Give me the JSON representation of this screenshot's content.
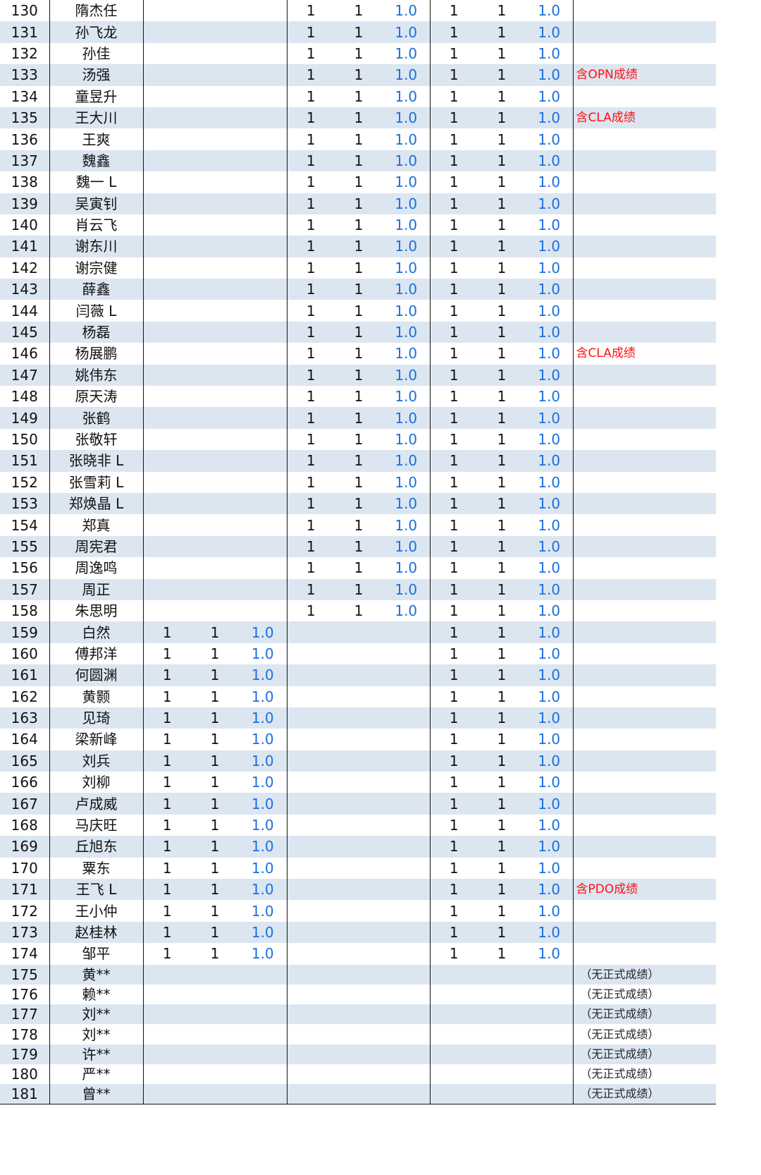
{
  "rows": [
    {
      "no": "130",
      "name": "隋杰任",
      "a1": "",
      "a2": "",
      "ar": "",
      "b1": "1",
      "b2": "1",
      "br": "1.0",
      "c1": "1",
      "c2": "1",
      "cr": "1.0",
      "note": ""
    },
    {
      "no": "131",
      "name": "孙飞龙",
      "a1": "",
      "a2": "",
      "ar": "",
      "b1": "1",
      "b2": "1",
      "br": "1.0",
      "c1": "1",
      "c2": "1",
      "cr": "1.0",
      "note": ""
    },
    {
      "no": "132",
      "name": "孙佳",
      "a1": "",
      "a2": "",
      "ar": "",
      "b1": "1",
      "b2": "1",
      "br": "1.0",
      "c1": "1",
      "c2": "1",
      "cr": "1.0",
      "note": ""
    },
    {
      "no": "133",
      "name": "汤强",
      "a1": "",
      "a2": "",
      "ar": "",
      "b1": "1",
      "b2": "1",
      "br": "1.0",
      "c1": "1",
      "c2": "1",
      "cr": "1.0",
      "note": "含OPN成绩"
    },
    {
      "no": "134",
      "name": "童昱升",
      "a1": "",
      "a2": "",
      "ar": "",
      "b1": "1",
      "b2": "1",
      "br": "1.0",
      "c1": "1",
      "c2": "1",
      "cr": "1.0",
      "note": ""
    },
    {
      "no": "135",
      "name": "王大川",
      "a1": "",
      "a2": "",
      "ar": "",
      "b1": "1",
      "b2": "1",
      "br": "1.0",
      "c1": "1",
      "c2": "1",
      "cr": "1.0",
      "note": "含CLA成绩"
    },
    {
      "no": "136",
      "name": "王爽",
      "a1": "",
      "a2": "",
      "ar": "",
      "b1": "1",
      "b2": "1",
      "br": "1.0",
      "c1": "1",
      "c2": "1",
      "cr": "1.0",
      "note": ""
    },
    {
      "no": "137",
      "name": "魏鑫",
      "a1": "",
      "a2": "",
      "ar": "",
      "b1": "1",
      "b2": "1",
      "br": "1.0",
      "c1": "1",
      "c2": "1",
      "cr": "1.0",
      "note": ""
    },
    {
      "no": "138",
      "name": "魏一 L",
      "a1": "",
      "a2": "",
      "ar": "",
      "b1": "1",
      "b2": "1",
      "br": "1.0",
      "c1": "1",
      "c2": "1",
      "cr": "1.0",
      "note": ""
    },
    {
      "no": "139",
      "name": "吴寅钊",
      "a1": "",
      "a2": "",
      "ar": "",
      "b1": "1",
      "b2": "1",
      "br": "1.0",
      "c1": "1",
      "c2": "1",
      "cr": "1.0",
      "note": ""
    },
    {
      "no": "140",
      "name": "肖云飞",
      "a1": "",
      "a2": "",
      "ar": "",
      "b1": "1",
      "b2": "1",
      "br": "1.0",
      "c1": "1",
      "c2": "1",
      "cr": "1.0",
      "note": ""
    },
    {
      "no": "141",
      "name": "谢东川",
      "a1": "",
      "a2": "",
      "ar": "",
      "b1": "1",
      "b2": "1",
      "br": "1.0",
      "c1": "1",
      "c2": "1",
      "cr": "1.0",
      "note": ""
    },
    {
      "no": "142",
      "name": "谢宗健",
      "a1": "",
      "a2": "",
      "ar": "",
      "b1": "1",
      "b2": "1",
      "br": "1.0",
      "c1": "1",
      "c2": "1",
      "cr": "1.0",
      "note": ""
    },
    {
      "no": "143",
      "name": "薛鑫",
      "a1": "",
      "a2": "",
      "ar": "",
      "b1": "1",
      "b2": "1",
      "br": "1.0",
      "c1": "1",
      "c2": "1",
      "cr": "1.0",
      "note": ""
    },
    {
      "no": "144",
      "name": "闫薇 L",
      "a1": "",
      "a2": "",
      "ar": "",
      "b1": "1",
      "b2": "1",
      "br": "1.0",
      "c1": "1",
      "c2": "1",
      "cr": "1.0",
      "note": ""
    },
    {
      "no": "145",
      "name": "杨磊",
      "a1": "",
      "a2": "",
      "ar": "",
      "b1": "1",
      "b2": "1",
      "br": "1.0",
      "c1": "1",
      "c2": "1",
      "cr": "1.0",
      "note": ""
    },
    {
      "no": "146",
      "name": "杨展鹏",
      "a1": "",
      "a2": "",
      "ar": "",
      "b1": "1",
      "b2": "1",
      "br": "1.0",
      "c1": "1",
      "c2": "1",
      "cr": "1.0",
      "note": "含CLA成绩"
    },
    {
      "no": "147",
      "name": "姚伟东",
      "a1": "",
      "a2": "",
      "ar": "",
      "b1": "1",
      "b2": "1",
      "br": "1.0",
      "c1": "1",
      "c2": "1",
      "cr": "1.0",
      "note": ""
    },
    {
      "no": "148",
      "name": "原天涛",
      "a1": "",
      "a2": "",
      "ar": "",
      "b1": "1",
      "b2": "1",
      "br": "1.0",
      "c1": "1",
      "c2": "1",
      "cr": "1.0",
      "note": ""
    },
    {
      "no": "149",
      "name": "张鹤",
      "a1": "",
      "a2": "",
      "ar": "",
      "b1": "1",
      "b2": "1",
      "br": "1.0",
      "c1": "1",
      "c2": "1",
      "cr": "1.0",
      "note": ""
    },
    {
      "no": "150",
      "name": "张敬轩",
      "a1": "",
      "a2": "",
      "ar": "",
      "b1": "1",
      "b2": "1",
      "br": "1.0",
      "c1": "1",
      "c2": "1",
      "cr": "1.0",
      "note": ""
    },
    {
      "no": "151",
      "name": "张晓非 L",
      "a1": "",
      "a2": "",
      "ar": "",
      "b1": "1",
      "b2": "1",
      "br": "1.0",
      "c1": "1",
      "c2": "1",
      "cr": "1.0",
      "note": ""
    },
    {
      "no": "152",
      "name": "张雪莉 L",
      "a1": "",
      "a2": "",
      "ar": "",
      "b1": "1",
      "b2": "1",
      "br": "1.0",
      "c1": "1",
      "c2": "1",
      "cr": "1.0",
      "note": ""
    },
    {
      "no": "153",
      "name": "郑焕晶 L",
      "a1": "",
      "a2": "",
      "ar": "",
      "b1": "1",
      "b2": "1",
      "br": "1.0",
      "c1": "1",
      "c2": "1",
      "cr": "1.0",
      "note": ""
    },
    {
      "no": "154",
      "name": "郑真",
      "a1": "",
      "a2": "",
      "ar": "",
      "b1": "1",
      "b2": "1",
      "br": "1.0",
      "c1": "1",
      "c2": "1",
      "cr": "1.0",
      "note": ""
    },
    {
      "no": "155",
      "name": "周宪君",
      "a1": "",
      "a2": "",
      "ar": "",
      "b1": "1",
      "b2": "1",
      "br": "1.0",
      "c1": "1",
      "c2": "1",
      "cr": "1.0",
      "note": ""
    },
    {
      "no": "156",
      "name": "周逸鸣",
      "a1": "",
      "a2": "",
      "ar": "",
      "b1": "1",
      "b2": "1",
      "br": "1.0",
      "c1": "1",
      "c2": "1",
      "cr": "1.0",
      "note": ""
    },
    {
      "no": "157",
      "name": "周正",
      "a1": "",
      "a2": "",
      "ar": "",
      "b1": "1",
      "b2": "1",
      "br": "1.0",
      "c1": "1",
      "c2": "1",
      "cr": "1.0",
      "note": ""
    },
    {
      "no": "158",
      "name": "朱思明",
      "a1": "",
      "a2": "",
      "ar": "",
      "b1": "1",
      "b2": "1",
      "br": "1.0",
      "c1": "1",
      "c2": "1",
      "cr": "1.0",
      "note": ""
    },
    {
      "no": "159",
      "name": "白然",
      "a1": "1",
      "a2": "1",
      "ar": "1.0",
      "b1": "",
      "b2": "",
      "br": "",
      "c1": "1",
      "c2": "1",
      "cr": "1.0",
      "note": ""
    },
    {
      "no": "160",
      "name": "傅邦洋",
      "a1": "1",
      "a2": "1",
      "ar": "1.0",
      "b1": "",
      "b2": "",
      "br": "",
      "c1": "1",
      "c2": "1",
      "cr": "1.0",
      "note": ""
    },
    {
      "no": "161",
      "name": "何圆渊",
      "a1": "1",
      "a2": "1",
      "ar": "1.0",
      "b1": "",
      "b2": "",
      "br": "",
      "c1": "1",
      "c2": "1",
      "cr": "1.0",
      "note": ""
    },
    {
      "no": "162",
      "name": "黄颢",
      "a1": "1",
      "a2": "1",
      "ar": "1.0",
      "b1": "",
      "b2": "",
      "br": "",
      "c1": "1",
      "c2": "1",
      "cr": "1.0",
      "note": ""
    },
    {
      "no": "163",
      "name": "见琦",
      "a1": "1",
      "a2": "1",
      "ar": "1.0",
      "b1": "",
      "b2": "",
      "br": "",
      "c1": "1",
      "c2": "1",
      "cr": "1.0",
      "note": ""
    },
    {
      "no": "164",
      "name": "梁新峰",
      "a1": "1",
      "a2": "1",
      "ar": "1.0",
      "b1": "",
      "b2": "",
      "br": "",
      "c1": "1",
      "c2": "1",
      "cr": "1.0",
      "note": ""
    },
    {
      "no": "165",
      "name": "刘兵",
      "a1": "1",
      "a2": "1",
      "ar": "1.0",
      "b1": "",
      "b2": "",
      "br": "",
      "c1": "1",
      "c2": "1",
      "cr": "1.0",
      "note": ""
    },
    {
      "no": "166",
      "name": "刘柳",
      "a1": "1",
      "a2": "1",
      "ar": "1.0",
      "b1": "",
      "b2": "",
      "br": "",
      "c1": "1",
      "c2": "1",
      "cr": "1.0",
      "note": ""
    },
    {
      "no": "167",
      "name": "卢成威",
      "a1": "1",
      "a2": "1",
      "ar": "1.0",
      "b1": "",
      "b2": "",
      "br": "",
      "c1": "1",
      "c2": "1",
      "cr": "1.0",
      "note": ""
    },
    {
      "no": "168",
      "name": "马庆旺",
      "a1": "1",
      "a2": "1",
      "ar": "1.0",
      "b1": "",
      "b2": "",
      "br": "",
      "c1": "1",
      "c2": "1",
      "cr": "1.0",
      "note": ""
    },
    {
      "no": "169",
      "name": "丘旭东",
      "a1": "1",
      "a2": "1",
      "ar": "1.0",
      "b1": "",
      "b2": "",
      "br": "",
      "c1": "1",
      "c2": "1",
      "cr": "1.0",
      "note": ""
    },
    {
      "no": "170",
      "name": "粟东",
      "a1": "1",
      "a2": "1",
      "ar": "1.0",
      "b1": "",
      "b2": "",
      "br": "",
      "c1": "1",
      "c2": "1",
      "cr": "1.0",
      "note": ""
    },
    {
      "no": "171",
      "name": "王飞 L",
      "a1": "1",
      "a2": "1",
      "ar": "1.0",
      "b1": "",
      "b2": "",
      "br": "",
      "c1": "1",
      "c2": "1",
      "cr": "1.0",
      "note": "含PDO成绩"
    },
    {
      "no": "172",
      "name": "王小仲",
      "a1": "1",
      "a2": "1",
      "ar": "1.0",
      "b1": "",
      "b2": "",
      "br": "",
      "c1": "1",
      "c2": "1",
      "cr": "1.0",
      "note": ""
    },
    {
      "no": "173",
      "name": "赵桂林",
      "a1": "1",
      "a2": "1",
      "ar": "1.0",
      "b1": "",
      "b2": "",
      "br": "",
      "c1": "1",
      "c2": "1",
      "cr": "1.0",
      "note": ""
    },
    {
      "no": "174",
      "name": "邹平",
      "a1": "1",
      "a2": "1",
      "ar": "1.0",
      "b1": "",
      "b2": "",
      "br": "",
      "c1": "1",
      "c2": "1",
      "cr": "1.0",
      "note": ""
    },
    {
      "no": "175",
      "name": "黄**",
      "a1": "",
      "a2": "",
      "ar": "",
      "b1": "",
      "b2": "",
      "br": "",
      "c1": "",
      "c2": "",
      "cr": "",
      "note": "（无正式成绩）"
    },
    {
      "no": "176",
      "name": "赖**",
      "a1": "",
      "a2": "",
      "ar": "",
      "b1": "",
      "b2": "",
      "br": "",
      "c1": "",
      "c2": "",
      "cr": "",
      "note": "（无正式成绩）"
    },
    {
      "no": "177",
      "name": "刘**",
      "a1": "",
      "a2": "",
      "ar": "",
      "b1": "",
      "b2": "",
      "br": "",
      "c1": "",
      "c2": "",
      "cr": "",
      "note": "（无正式成绩）"
    },
    {
      "no": "178",
      "name": "刘**",
      "a1": "",
      "a2": "",
      "ar": "",
      "b1": "",
      "b2": "",
      "br": "",
      "c1": "",
      "c2": "",
      "cr": "",
      "note": "（无正式成绩）"
    },
    {
      "no": "179",
      "name": "许**",
      "a1": "",
      "a2": "",
      "ar": "",
      "b1": "",
      "b2": "",
      "br": "",
      "c1": "",
      "c2": "",
      "cr": "",
      "note": "（无正式成绩）"
    },
    {
      "no": "180",
      "name": "严**",
      "a1": "",
      "a2": "",
      "ar": "",
      "b1": "",
      "b2": "",
      "br": "",
      "c1": "",
      "c2": "",
      "cr": "",
      "note": "（无正式成绩）"
    },
    {
      "no": "181",
      "name": "曾**",
      "a1": "",
      "a2": "",
      "ar": "",
      "b1": "",
      "b2": "",
      "br": "",
      "c1": "",
      "c2": "",
      "cr": "",
      "note": "（无正式成绩）"
    }
  ]
}
